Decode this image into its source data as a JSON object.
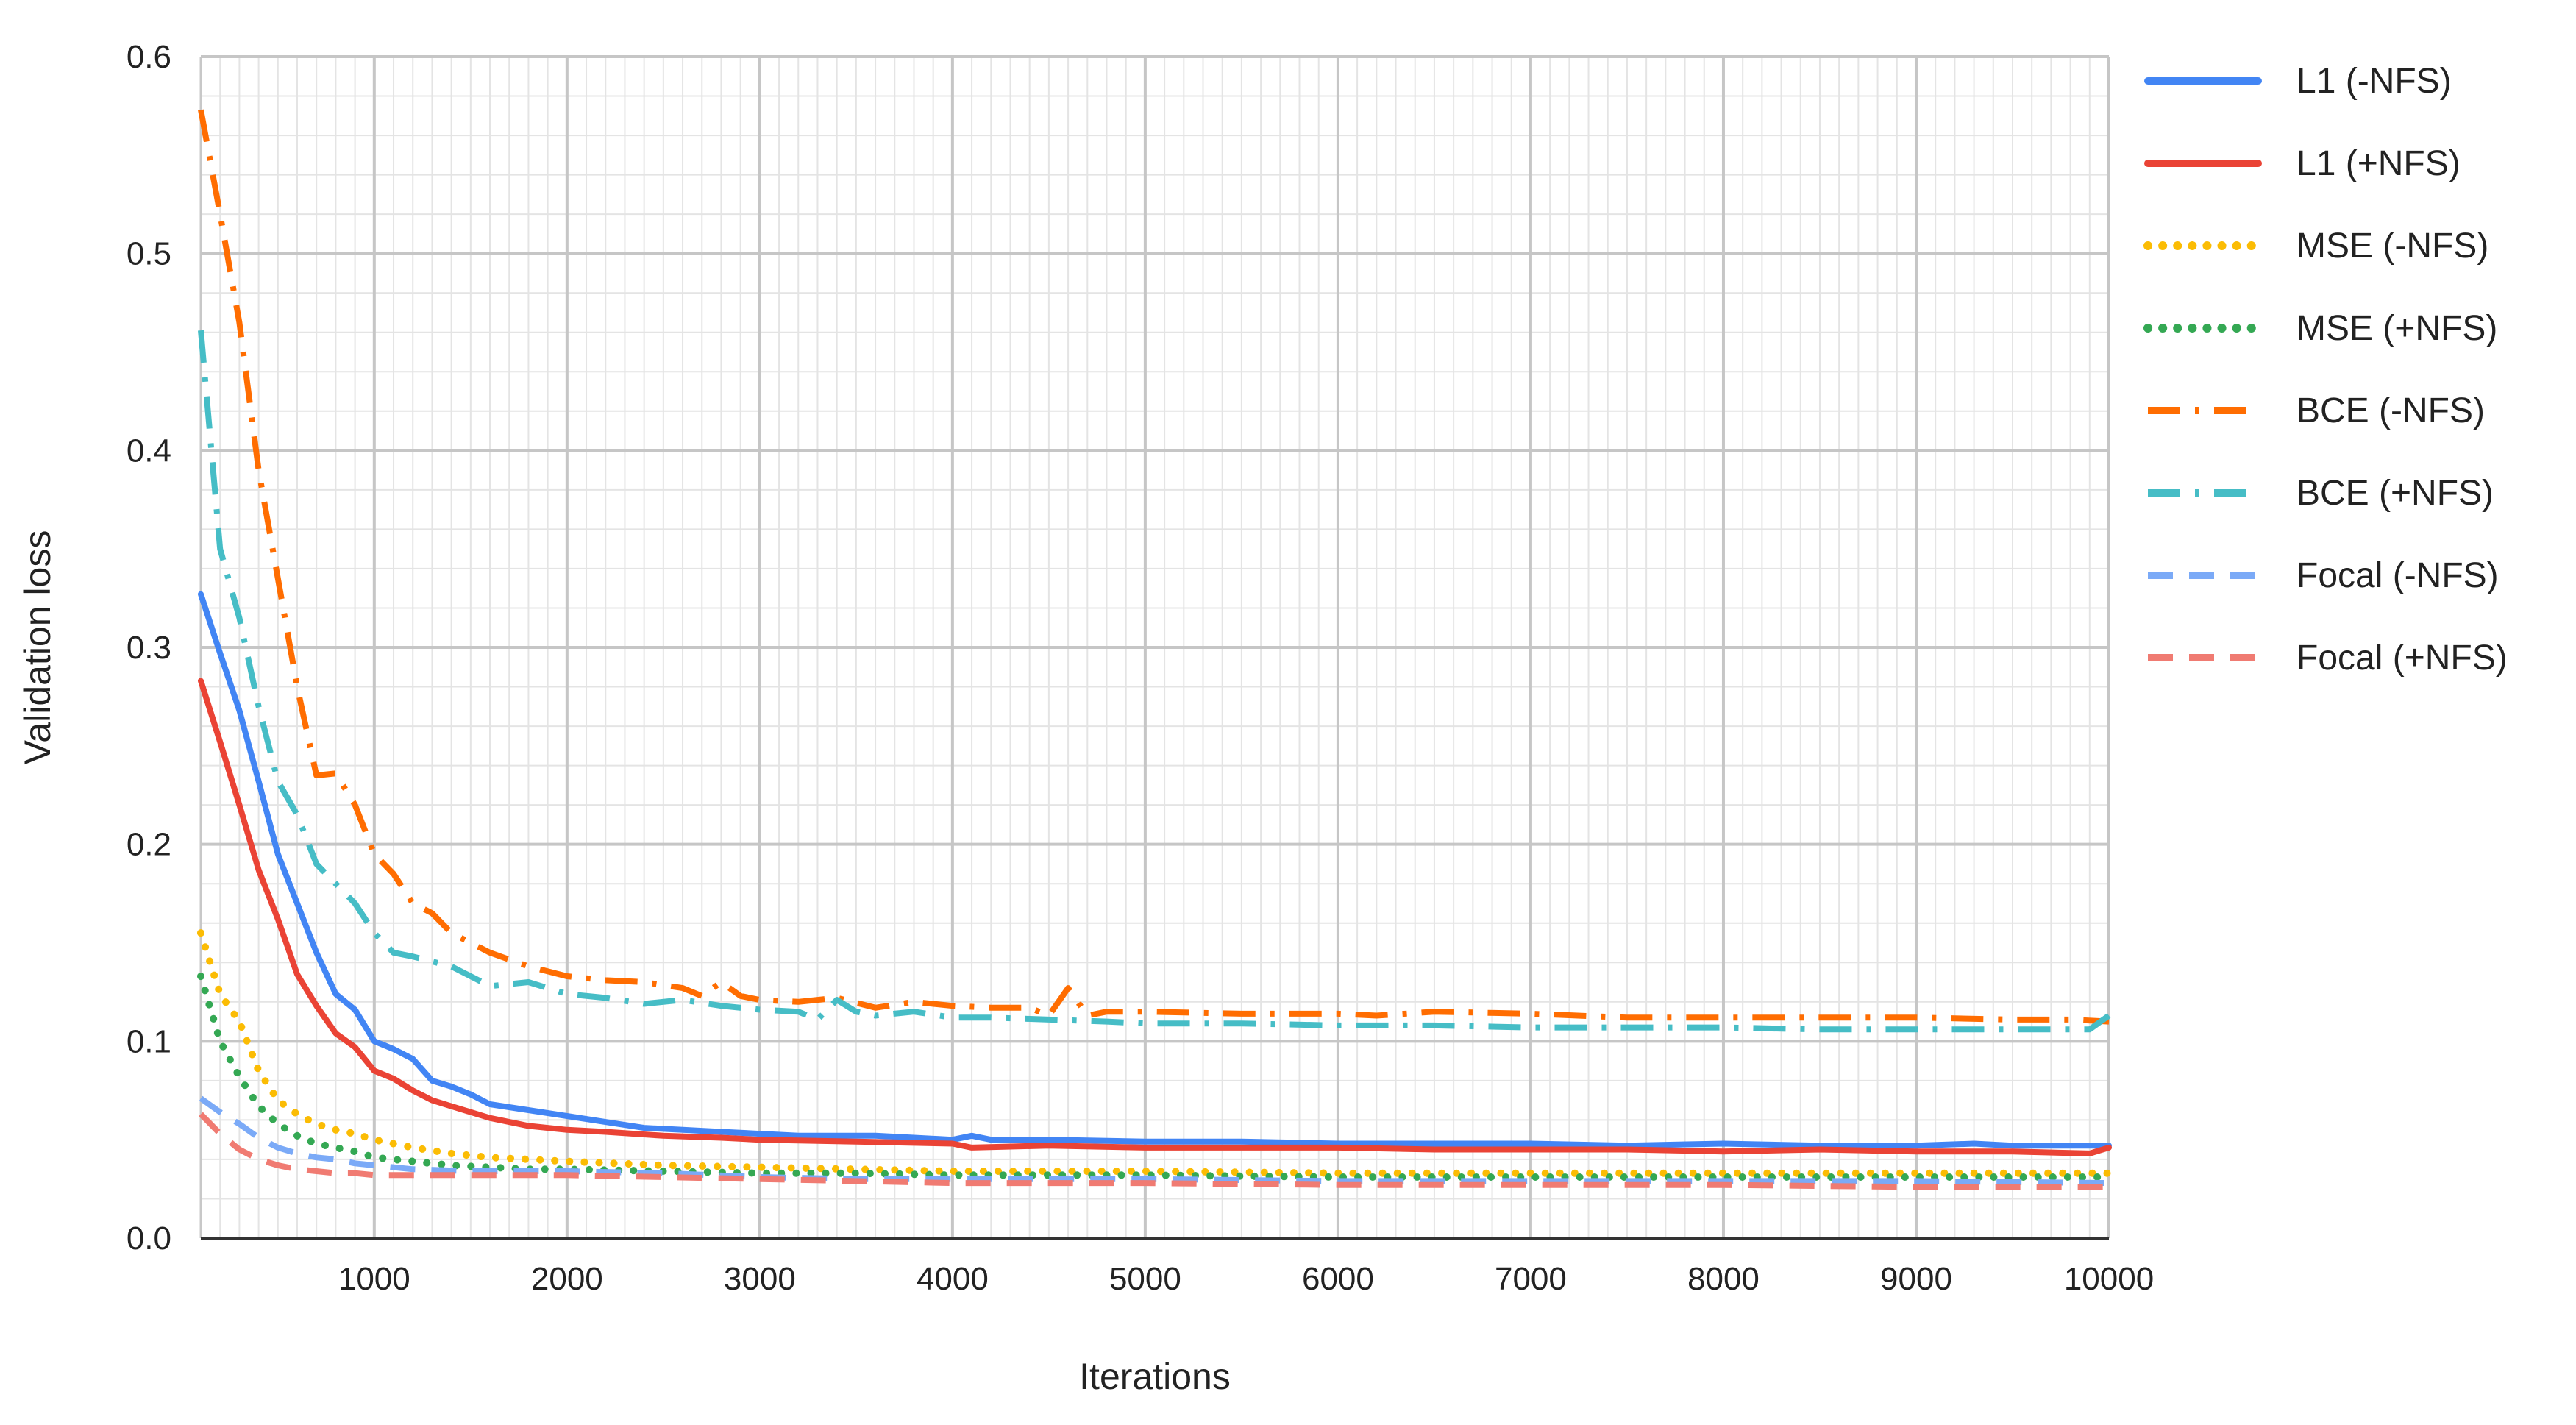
{
  "chart_data": {
    "type": "line",
    "title": "",
    "xlabel": "Iterations",
    "ylabel": "Validation loss",
    "xlim": [
      100,
      10000
    ],
    "ylim": [
      0,
      0.6
    ],
    "x_ticks": [
      1000,
      2000,
      3000,
      4000,
      5000,
      6000,
      7000,
      8000,
      9000,
      10000
    ],
    "x_tick_labels": [
      "1000",
      "2000",
      "3000",
      "4000",
      "5000",
      "6000",
      "7000",
      "8000",
      "9000",
      "10000"
    ],
    "y_ticks": [
      0,
      0.1,
      0.2,
      0.3,
      0.4,
      0.5,
      0.6
    ],
    "y_tick_labels": [
      "0.0",
      "0.1",
      "0.2",
      "0.3",
      "0.4",
      "0.5",
      "0.6"
    ],
    "grid": true,
    "legend_position": "right",
    "series": [
      {
        "name": "L1 (-NFS)",
        "color": "#4285f4",
        "dash": "solid",
        "points": [
          [
            100,
            0.327
          ],
          [
            200,
            0.297
          ],
          [
            300,
            0.268
          ],
          [
            400,
            0.232
          ],
          [
            500,
            0.195
          ],
          [
            600,
            0.17
          ],
          [
            700,
            0.145
          ],
          [
            800,
            0.124
          ],
          [
            900,
            0.116
          ],
          [
            1000,
            0.1
          ],
          [
            1100,
            0.096
          ],
          [
            1200,
            0.091
          ],
          [
            1300,
            0.08
          ],
          [
            1400,
            0.077
          ],
          [
            1500,
            0.073
          ],
          [
            1600,
            0.068
          ],
          [
            1800,
            0.065
          ],
          [
            2000,
            0.062
          ],
          [
            2200,
            0.059
          ],
          [
            2400,
            0.056
          ],
          [
            2600,
            0.055
          ],
          [
            2800,
            0.054
          ],
          [
            3000,
            0.053
          ],
          [
            3200,
            0.052
          ],
          [
            3400,
            0.052
          ],
          [
            3600,
            0.052
          ],
          [
            3800,
            0.051
          ],
          [
            4000,
            0.05
          ],
          [
            4100,
            0.052
          ],
          [
            4200,
            0.05
          ],
          [
            4500,
            0.05
          ],
          [
            5000,
            0.049
          ],
          [
            5500,
            0.049
          ],
          [
            6000,
            0.048
          ],
          [
            6500,
            0.048
          ],
          [
            7000,
            0.048
          ],
          [
            7500,
            0.047
          ],
          [
            8000,
            0.048
          ],
          [
            8500,
            0.047
          ],
          [
            9000,
            0.047
          ],
          [
            9300,
            0.048
          ],
          [
            9500,
            0.047
          ],
          [
            10000,
            0.047
          ]
        ]
      },
      {
        "name": "L1 (+NFS)",
        "color": "#ea4335",
        "dash": "solid",
        "points": [
          [
            100,
            0.283
          ],
          [
            200,
            0.252
          ],
          [
            300,
            0.22
          ],
          [
            400,
            0.187
          ],
          [
            500,
            0.162
          ],
          [
            600,
            0.134
          ],
          [
            700,
            0.118
          ],
          [
            800,
            0.104
          ],
          [
            900,
            0.097
          ],
          [
            1000,
            0.085
          ],
          [
            1100,
            0.081
          ],
          [
            1200,
            0.075
          ],
          [
            1300,
            0.07
          ],
          [
            1400,
            0.067
          ],
          [
            1500,
            0.064
          ],
          [
            1600,
            0.061
          ],
          [
            1800,
            0.057
          ],
          [
            2000,
            0.055
          ],
          [
            2200,
            0.054
          ],
          [
            2500,
            0.052
          ],
          [
            2800,
            0.051
          ],
          [
            3000,
            0.05
          ],
          [
            3500,
            0.049
          ],
          [
            4000,
            0.048
          ],
          [
            4100,
            0.046
          ],
          [
            4500,
            0.047
          ],
          [
            5000,
            0.046
          ],
          [
            5500,
            0.046
          ],
          [
            6000,
            0.046
          ],
          [
            6500,
            0.045
          ],
          [
            7000,
            0.045
          ],
          [
            7500,
            0.045
          ],
          [
            8000,
            0.044
          ],
          [
            8500,
            0.045
          ],
          [
            9000,
            0.044
          ],
          [
            9500,
            0.044
          ],
          [
            9900,
            0.043
          ],
          [
            10000,
            0.046
          ]
        ]
      },
      {
        "name": "MSE (-NFS)",
        "color": "#fbbc04",
        "dash": "dotted",
        "points": [
          [
            100,
            0.155
          ],
          [
            200,
            0.124
          ],
          [
            300,
            0.11
          ],
          [
            400,
            0.085
          ],
          [
            500,
            0.07
          ],
          [
            600,
            0.063
          ],
          [
            700,
            0.058
          ],
          [
            800,
            0.055
          ],
          [
            900,
            0.053
          ],
          [
            1000,
            0.05
          ],
          [
            1200,
            0.046
          ],
          [
            1400,
            0.043
          ],
          [
            1600,
            0.041
          ],
          [
            1800,
            0.04
          ],
          [
            2000,
            0.039
          ],
          [
            2500,
            0.037
          ],
          [
            3000,
            0.036
          ],
          [
            3500,
            0.035
          ],
          [
            4000,
            0.034
          ],
          [
            5000,
            0.034
          ],
          [
            6000,
            0.033
          ],
          [
            7000,
            0.033
          ],
          [
            8000,
            0.033
          ],
          [
            9000,
            0.033
          ],
          [
            10000,
            0.033
          ]
        ]
      },
      {
        "name": "MSE (+NFS)",
        "color": "#34a853",
        "dash": "dotted",
        "points": [
          [
            100,
            0.133
          ],
          [
            200,
            0.1
          ],
          [
            300,
            0.082
          ],
          [
            400,
            0.067
          ],
          [
            500,
            0.058
          ],
          [
            600,
            0.052
          ],
          [
            700,
            0.048
          ],
          [
            800,
            0.046
          ],
          [
            900,
            0.044
          ],
          [
            1000,
            0.041
          ],
          [
            1200,
            0.039
          ],
          [
            1400,
            0.037
          ],
          [
            1600,
            0.036
          ],
          [
            1800,
            0.035
          ],
          [
            2000,
            0.035
          ],
          [
            2500,
            0.034
          ],
          [
            3000,
            0.033
          ],
          [
            3500,
            0.033
          ],
          [
            4000,
            0.032
          ],
          [
            5000,
            0.032
          ],
          [
            6000,
            0.031
          ],
          [
            7000,
            0.031
          ],
          [
            8000,
            0.031
          ],
          [
            9000,
            0.031
          ],
          [
            10000,
            0.031
          ]
        ]
      },
      {
        "name": "BCE (-NFS)",
        "color": "#ff6d01",
        "dash": "dashdot",
        "points": [
          [
            100,
            0.573
          ],
          [
            200,
            0.52
          ],
          [
            300,
            0.465
          ],
          [
            400,
            0.39
          ],
          [
            500,
            0.335
          ],
          [
            600,
            0.28
          ],
          [
            700,
            0.235
          ],
          [
            800,
            0.236
          ],
          [
            900,
            0.22
          ],
          [
            1000,
            0.195
          ],
          [
            1100,
            0.185
          ],
          [
            1200,
            0.17
          ],
          [
            1300,
            0.165
          ],
          [
            1400,
            0.155
          ],
          [
            1500,
            0.15
          ],
          [
            1600,
            0.145
          ],
          [
            1800,
            0.138
          ],
          [
            2000,
            0.133
          ],
          [
            2200,
            0.131
          ],
          [
            2400,
            0.13
          ],
          [
            2600,
            0.127
          ],
          [
            2700,
            0.123
          ],
          [
            2800,
            0.13
          ],
          [
            2900,
            0.123
          ],
          [
            3000,
            0.121
          ],
          [
            3200,
            0.12
          ],
          [
            3400,
            0.122
          ],
          [
            3600,
            0.117
          ],
          [
            3800,
            0.12
          ],
          [
            4000,
            0.118
          ],
          [
            4200,
            0.117
          ],
          [
            4400,
            0.117
          ],
          [
            4500,
            0.113
          ],
          [
            4600,
            0.127
          ],
          [
            4700,
            0.113
          ],
          [
            4800,
            0.115
          ],
          [
            5000,
            0.115
          ],
          [
            5500,
            0.114
          ],
          [
            6000,
            0.114
          ],
          [
            6200,
            0.113
          ],
          [
            6500,
            0.115
          ],
          [
            7000,
            0.114
          ],
          [
            7500,
            0.112
          ],
          [
            8000,
            0.112
          ],
          [
            8500,
            0.112
          ],
          [
            9000,
            0.112
          ],
          [
            9500,
            0.111
          ],
          [
            9800,
            0.111
          ],
          [
            10000,
            0.11
          ]
        ]
      },
      {
        "name": "BCE (+NFS)",
        "color": "#46bdc6",
        "dash": "dashdot",
        "points": [
          [
            100,
            0.461
          ],
          [
            200,
            0.35
          ],
          [
            300,
            0.315
          ],
          [
            400,
            0.27
          ],
          [
            500,
            0.232
          ],
          [
            600,
            0.215
          ],
          [
            700,
            0.19
          ],
          [
            800,
            0.18
          ],
          [
            900,
            0.17
          ],
          [
            1000,
            0.155
          ],
          [
            1100,
            0.145
          ],
          [
            1200,
            0.143
          ],
          [
            1400,
            0.138
          ],
          [
            1600,
            0.128
          ],
          [
            1800,
            0.13
          ],
          [
            2000,
            0.124
          ],
          [
            2200,
            0.122
          ],
          [
            2400,
            0.119
          ],
          [
            2600,
            0.121
          ],
          [
            2800,
            0.118
          ],
          [
            3000,
            0.116
          ],
          [
            3200,
            0.115
          ],
          [
            3300,
            0.111
          ],
          [
            3400,
            0.121
          ],
          [
            3500,
            0.115
          ],
          [
            3600,
            0.113
          ],
          [
            3800,
            0.115
          ],
          [
            4000,
            0.112
          ],
          [
            4200,
            0.112
          ],
          [
            4500,
            0.111
          ],
          [
            4800,
            0.11
          ],
          [
            5000,
            0.109
          ],
          [
            5500,
            0.109
          ],
          [
            6000,
            0.108
          ],
          [
            6500,
            0.108
          ],
          [
            7000,
            0.107
          ],
          [
            7500,
            0.107
          ],
          [
            8000,
            0.107
          ],
          [
            8500,
            0.106
          ],
          [
            9000,
            0.106
          ],
          [
            9500,
            0.106
          ],
          [
            9900,
            0.106
          ],
          [
            10000,
            0.113
          ]
        ]
      },
      {
        "name": "Focal (-NFS)",
        "color": "#7baaf7",
        "dash": "dashed",
        "points": [
          [
            100,
            0.071
          ],
          [
            200,
            0.064
          ],
          [
            300,
            0.058
          ],
          [
            400,
            0.051
          ],
          [
            500,
            0.046
          ],
          [
            600,
            0.043
          ],
          [
            700,
            0.041
          ],
          [
            800,
            0.04
          ],
          [
            900,
            0.038
          ],
          [
            1000,
            0.037
          ],
          [
            1200,
            0.035
          ],
          [
            1500,
            0.034
          ],
          [
            2000,
            0.034
          ],
          [
            2500,
            0.033
          ],
          [
            3000,
            0.031
          ],
          [
            3500,
            0.03
          ],
          [
            4000,
            0.03
          ],
          [
            5000,
            0.03
          ],
          [
            6000,
            0.029
          ],
          [
            7000,
            0.029
          ],
          [
            8000,
            0.029
          ],
          [
            9000,
            0.029
          ],
          [
            10000,
            0.028
          ]
        ]
      },
      {
        "name": "Focal (+NFS)",
        "color": "#f07b72",
        "dash": "dashed",
        "points": [
          [
            100,
            0.063
          ],
          [
            200,
            0.053
          ],
          [
            300,
            0.045
          ],
          [
            400,
            0.04
          ],
          [
            500,
            0.037
          ],
          [
            600,
            0.035
          ],
          [
            700,
            0.034
          ],
          [
            800,
            0.033
          ],
          [
            900,
            0.033
          ],
          [
            1000,
            0.032
          ],
          [
            1500,
            0.032
          ],
          [
            2000,
            0.032
          ],
          [
            2500,
            0.031
          ],
          [
            3000,
            0.03
          ],
          [
            3500,
            0.029
          ],
          [
            4000,
            0.028
          ],
          [
            5000,
            0.028
          ],
          [
            6000,
            0.027
          ],
          [
            7000,
            0.027
          ],
          [
            8000,
            0.027
          ],
          [
            9000,
            0.026
          ],
          [
            10000,
            0.026
          ]
        ]
      }
    ]
  }
}
